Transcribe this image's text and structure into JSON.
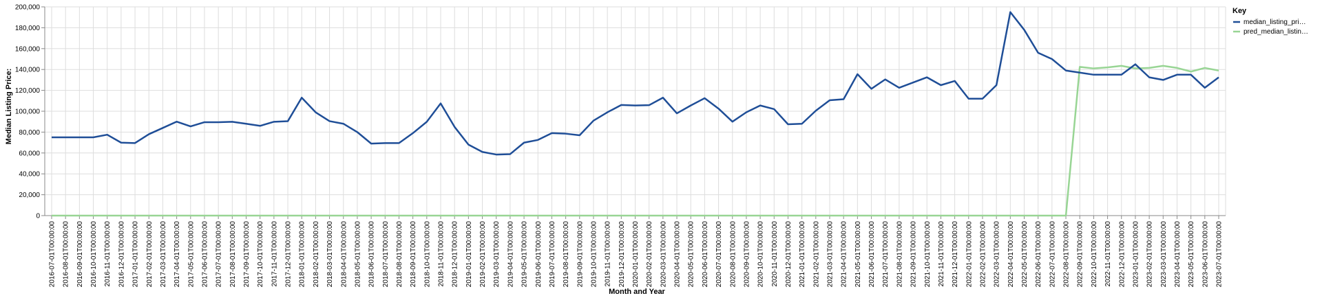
{
  "chart_data": {
    "type": "line",
    "xlabel": "Month and Year",
    "ylabel": "Median Listing Price:",
    "ylim": [
      0,
      200000
    ],
    "yticks": [
      "0",
      "20,000",
      "40,000",
      "60,000",
      "80,000",
      "100,000",
      "120,000",
      "140,000",
      "160,000",
      "180,000",
      "200,000"
    ],
    "grid": true,
    "legend": {
      "title": "Key",
      "placement": "top-right",
      "items": [
        "median_listing_pri…",
        "pred_median_listin…"
      ]
    },
    "colors": {
      "median": "#1f4e97",
      "pred": "#98d594",
      "grid": "#dddddd",
      "axis": "#888888"
    },
    "x": [
      "2016-07-01T00:00:00",
      "2016-08-01T00:00:00",
      "2016-09-01T00:00:00",
      "2016-10-01T00:00:00",
      "2016-11-01T00:00:00",
      "2016-12-01T00:00:00",
      "2017-01-01T00:00:00",
      "2017-02-01T00:00:00",
      "2017-03-01T00:00:00",
      "2017-04-01T00:00:00",
      "2017-05-01T00:00:00",
      "2017-06-01T00:00:00",
      "2017-07-01T00:00:00",
      "2017-08-01T00:00:00",
      "2017-09-01T00:00:00",
      "2017-10-01T00:00:00",
      "2017-11-01T00:00:00",
      "2017-12-01T00:00:00",
      "2018-01-01T00:00:00",
      "2018-02-01T00:00:00",
      "2018-03-01T00:00:00",
      "2018-04-01T00:00:00",
      "2018-05-01T00:00:00",
      "2018-06-01T00:00:00",
      "2018-07-01T00:00:00",
      "2018-08-01T00:00:00",
      "2018-09-01T00:00:00",
      "2018-10-01T00:00:00",
      "2018-11-01T00:00:00",
      "2018-12-01T00:00:00",
      "2019-01-01T00:00:00",
      "2019-02-01T00:00:00",
      "2019-03-01T00:00:00",
      "2019-04-01T00:00:00",
      "2019-05-01T00:00:00",
      "2019-06-01T00:00:00",
      "2019-07-01T00:00:00",
      "2019-08-01T00:00:00",
      "2019-09-01T00:00:00",
      "2019-10-01T00:00:00",
      "2019-11-01T00:00:00",
      "2019-12-01T00:00:00",
      "2020-01-01T00:00:00",
      "2020-02-01T00:00:00",
      "2020-03-01T00:00:00",
      "2020-04-01T00:00:00",
      "2020-05-01T00:00:00",
      "2020-06-01T00:00:00",
      "2020-07-01T00:00:00",
      "2020-08-01T00:00:00",
      "2020-09-01T00:00:00",
      "2020-10-01T00:00:00",
      "2020-11-01T00:00:00",
      "2020-12-01T00:00:00",
      "2021-01-01T00:00:00",
      "2021-02-01T00:00:00",
      "2021-03-01T00:00:00",
      "2021-04-01T00:00:00",
      "2021-05-01T00:00:00",
      "2021-06-01T00:00:00",
      "2021-07-01T00:00:00",
      "2021-08-01T00:00:00",
      "2021-09-01T00:00:00",
      "2021-10-01T00:00:00",
      "2021-11-01T00:00:00",
      "2021-12-01T00:00:00",
      "2022-01-01T00:00:00",
      "2022-02-01T00:00:00",
      "2022-03-01T00:00:00",
      "2022-04-01T00:00:00",
      "2022-05-01T00:00:00",
      "2022-06-01T00:00:00",
      "2022-07-01T00:00:00",
      "2022-08-01T00:00:00",
      "2022-09-01T00:00:00",
      "2022-10-01T00:00:00",
      "2022-11-01T00:00:00",
      "2022-12-01T00:00:00",
      "2023-01-01T00:00:00",
      "2023-02-01T00:00:00",
      "2023-03-01T00:00:00",
      "2023-04-01T00:00:00",
      "2023-05-01T00:00:00",
      "2023-06-01T00:00:00",
      "2023-07-01T00:00:00"
    ],
    "series": [
      {
        "name": "median_listing_pri…",
        "values": [
          75000,
          75000,
          75000,
          75000,
          77500,
          69900,
          69500,
          78000,
          84000,
          90000,
          85500,
          89500,
          89500,
          89900,
          88000,
          86000,
          89900,
          90500,
          113000,
          99000,
          90500,
          88000,
          80000,
          69000,
          69500,
          69500,
          79000,
          89900,
          107500,
          85000,
          68000,
          61000,
          58500,
          58900,
          69900,
          72500,
          79000,
          78500,
          77000,
          91000,
          99000,
          106000,
          105500,
          105800,
          113000,
          98000,
          105500,
          112500,
          102500,
          90000,
          99000,
          105500,
          102000,
          87500,
          88000,
          100500,
          110500,
          111500,
          135500,
          121500,
          130500,
          122500,
          127500,
          132500,
          125000,
          129000,
          112000,
          112000,
          125000,
          195000,
          178000,
          156000,
          150000,
          139000,
          137000,
          135000,
          135000,
          135000,
          145000,
          132500,
          130000,
          135000,
          135000,
          122500,
          132500
        ]
      },
      {
        "name": "pred_median_listin…",
        "values": [
          0,
          0,
          0,
          0,
          0,
          0,
          0,
          0,
          0,
          0,
          0,
          0,
          0,
          0,
          0,
          0,
          0,
          0,
          0,
          0,
          0,
          0,
          0,
          0,
          0,
          0,
          0,
          0,
          0,
          0,
          0,
          0,
          0,
          0,
          0,
          0,
          0,
          0,
          0,
          0,
          0,
          0,
          0,
          0,
          0,
          0,
          0,
          0,
          0,
          0,
          0,
          0,
          0,
          0,
          0,
          0,
          0,
          0,
          0,
          0,
          0,
          0,
          0,
          0,
          0,
          0,
          0,
          0,
          0,
          0,
          0,
          0,
          0,
          0,
          142500,
          141000,
          142000,
          143500,
          141000,
          141500,
          143500,
          141500,
          138000,
          141500,
          139000
        ]
      }
    ]
  }
}
